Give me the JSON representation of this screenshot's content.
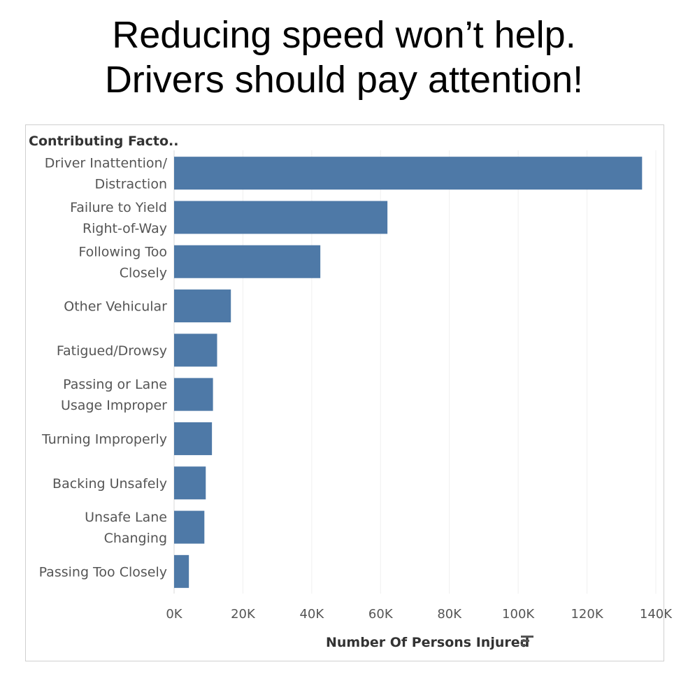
{
  "headline": {
    "line1": "Reducing speed won’t help.",
    "line2": "Drivers should pay attention!"
  },
  "chart_data": {
    "type": "bar",
    "orientation": "horizontal",
    "title": "Reducing speed won’t help. Drivers should pay attention!",
    "field_header": "Contributing Facto..",
    "xlabel": "Number Of Persons Injured",
    "xlim": [
      0,
      140000
    ],
    "xticks": [
      0,
      20000,
      40000,
      60000,
      80000,
      100000,
      120000,
      140000
    ],
    "xtick_labels": [
      "0K",
      "20K",
      "40K",
      "60K",
      "80K",
      "100K",
      "120K",
      "140K"
    ],
    "grid": "vertical",
    "sort_icon": "sort-descending-icon",
    "bar_color": "#4e79a7",
    "categories": [
      [
        "Driver Inattention/",
        "Distraction"
      ],
      [
        "Failure to Yield",
        "Right-of-Way"
      ],
      [
        "Following Too",
        "Closely"
      ],
      [
        "Other Vehicular"
      ],
      [
        "Fatigued/Drowsy"
      ],
      [
        "Passing or Lane",
        "Usage Improper"
      ],
      [
        "Turning Improperly"
      ],
      [
        "Backing Unsafely"
      ],
      [
        "Unsafe Lane",
        "Changing"
      ],
      [
        "Passing Too Closely"
      ]
    ],
    "values": [
      136000,
      62000,
      42500,
      16500,
      12500,
      11300,
      11000,
      9200,
      8800,
      4300
    ]
  }
}
